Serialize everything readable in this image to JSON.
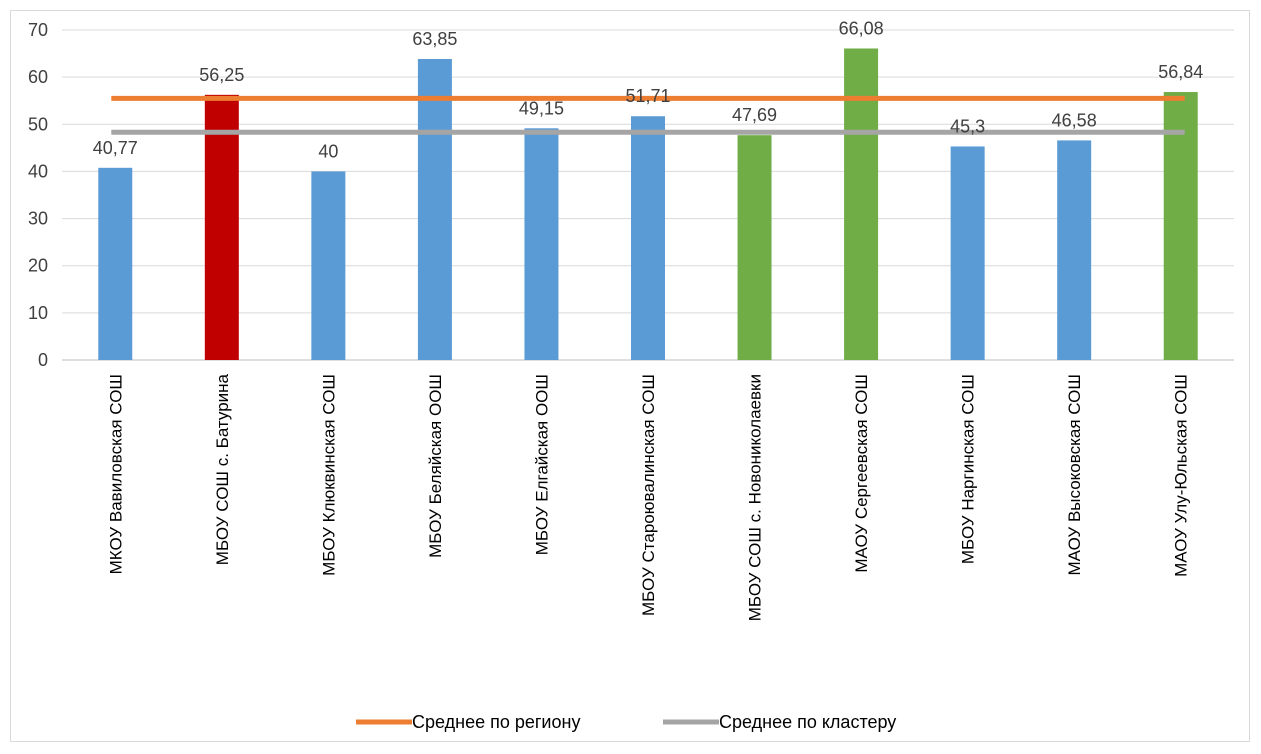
{
  "chart_data": {
    "type": "bar",
    "categories": [
      "МКОУ Вавиловская СОШ",
      "МБОУ СОШ с. Батурина",
      "МБОУ Клюквинская СОШ",
      "МБОУ Беляйская ООШ",
      "МБОУ Елгайская ООШ",
      "МБОУ Староювалинская СОШ",
      "МБОУ СОШ с. Новониколаевки",
      "МАОУ Сергеевская СОШ",
      "МБОУ Наргинская СОШ",
      "МАОУ Высоковская СОШ",
      "МАОУ Улу-Юльская СОШ"
    ],
    "values": [
      40.77,
      56.25,
      40,
      63.85,
      49.15,
      51.71,
      47.69,
      66.08,
      45.3,
      46.58,
      56.84
    ],
    "value_labels": [
      "40,77",
      "56,25",
      "40",
      "63,85",
      "49,15",
      "51,71",
      "47,69",
      "66,08",
      "45,3",
      "46,58",
      "56,84"
    ],
    "bar_colors": [
      "#5b9bd5",
      "#c00000",
      "#5b9bd5",
      "#5b9bd5",
      "#5b9bd5",
      "#5b9bd5",
      "#70ad47",
      "#70ad47",
      "#5b9bd5",
      "#5b9bd5",
      "#70ad47"
    ],
    "ylim": [
      0,
      70
    ],
    "yticks": [
      0,
      10,
      20,
      30,
      40,
      50,
      60,
      70
    ],
    "grid": true,
    "reference_lines": [
      {
        "name": "Среднее по региону",
        "value": 55.5,
        "color": "#ed7d31"
      },
      {
        "name": "Среднее по кластеру",
        "value": 48.3,
        "color": "#a5a5a5"
      }
    ],
    "legend_position": "bottom"
  }
}
